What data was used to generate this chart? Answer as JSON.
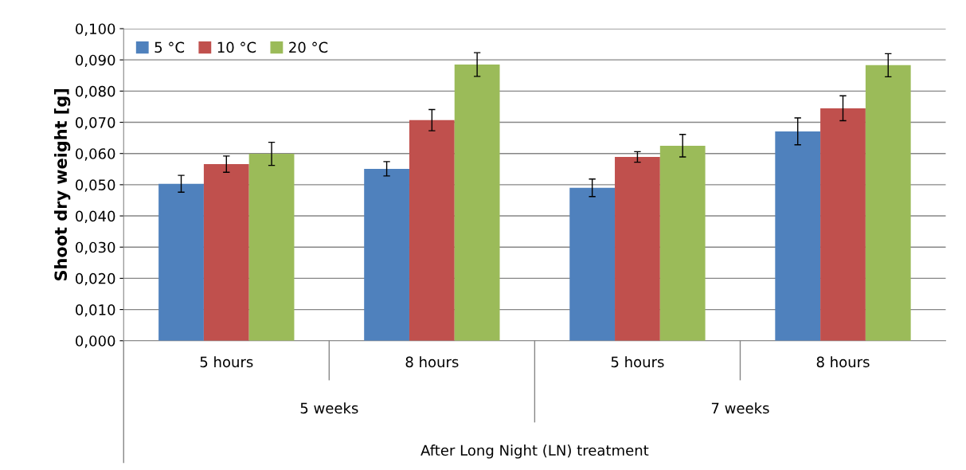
{
  "chart_data": {
    "type": "bar",
    "ylabel": "Shoot dry weight [g]",
    "categories": [
      "5 hours",
      "8 hours",
      "5 hours",
      "8 hours"
    ],
    "annotations": [
      "5 weeks",
      "7 weeks",
      "After Long Night (LN) treatment"
    ],
    "series": [
      {
        "name": "5 °C",
        "color": "#4f81bd",
        "values": [
          0.0503,
          0.0551,
          0.049,
          0.0671
        ],
        "errors": [
          0.0027,
          0.0023,
          0.0028,
          0.0043
        ]
      },
      {
        "name": "10 °C",
        "color": "#c0504d",
        "values": [
          0.0566,
          0.0707,
          0.0589,
          0.0745
        ],
        "errors": [
          0.0026,
          0.0034,
          0.0017,
          0.004
        ]
      },
      {
        "name": "20 °C",
        "color": "#9bbb59",
        "values": [
          0.0599,
          0.0885,
          0.0625,
          0.0883
        ],
        "errors": [
          0.0037,
          0.0038,
          0.0036,
          0.0037
        ]
      }
    ],
    "ylim": [
      0,
      0.1
    ],
    "yticks": [
      {
        "value": 0,
        "label": "0,000"
      },
      {
        "value": 0.01,
        "label": "0,010"
      },
      {
        "value": 0.02,
        "label": "0,020"
      },
      {
        "value": 0.03,
        "label": "0,030"
      },
      {
        "value": 0.04,
        "label": "0,040"
      },
      {
        "value": 0.05,
        "label": "0,050"
      },
      {
        "value": 0.06,
        "label": "0,060"
      },
      {
        "value": 0.07,
        "label": "0,070"
      },
      {
        "value": 0.08,
        "label": "0,080"
      },
      {
        "value": 0.09,
        "label": "0,090"
      },
      {
        "value": 0.1,
        "label": "0,100"
      }
    ],
    "grid": "y",
    "legend": "top left"
  }
}
